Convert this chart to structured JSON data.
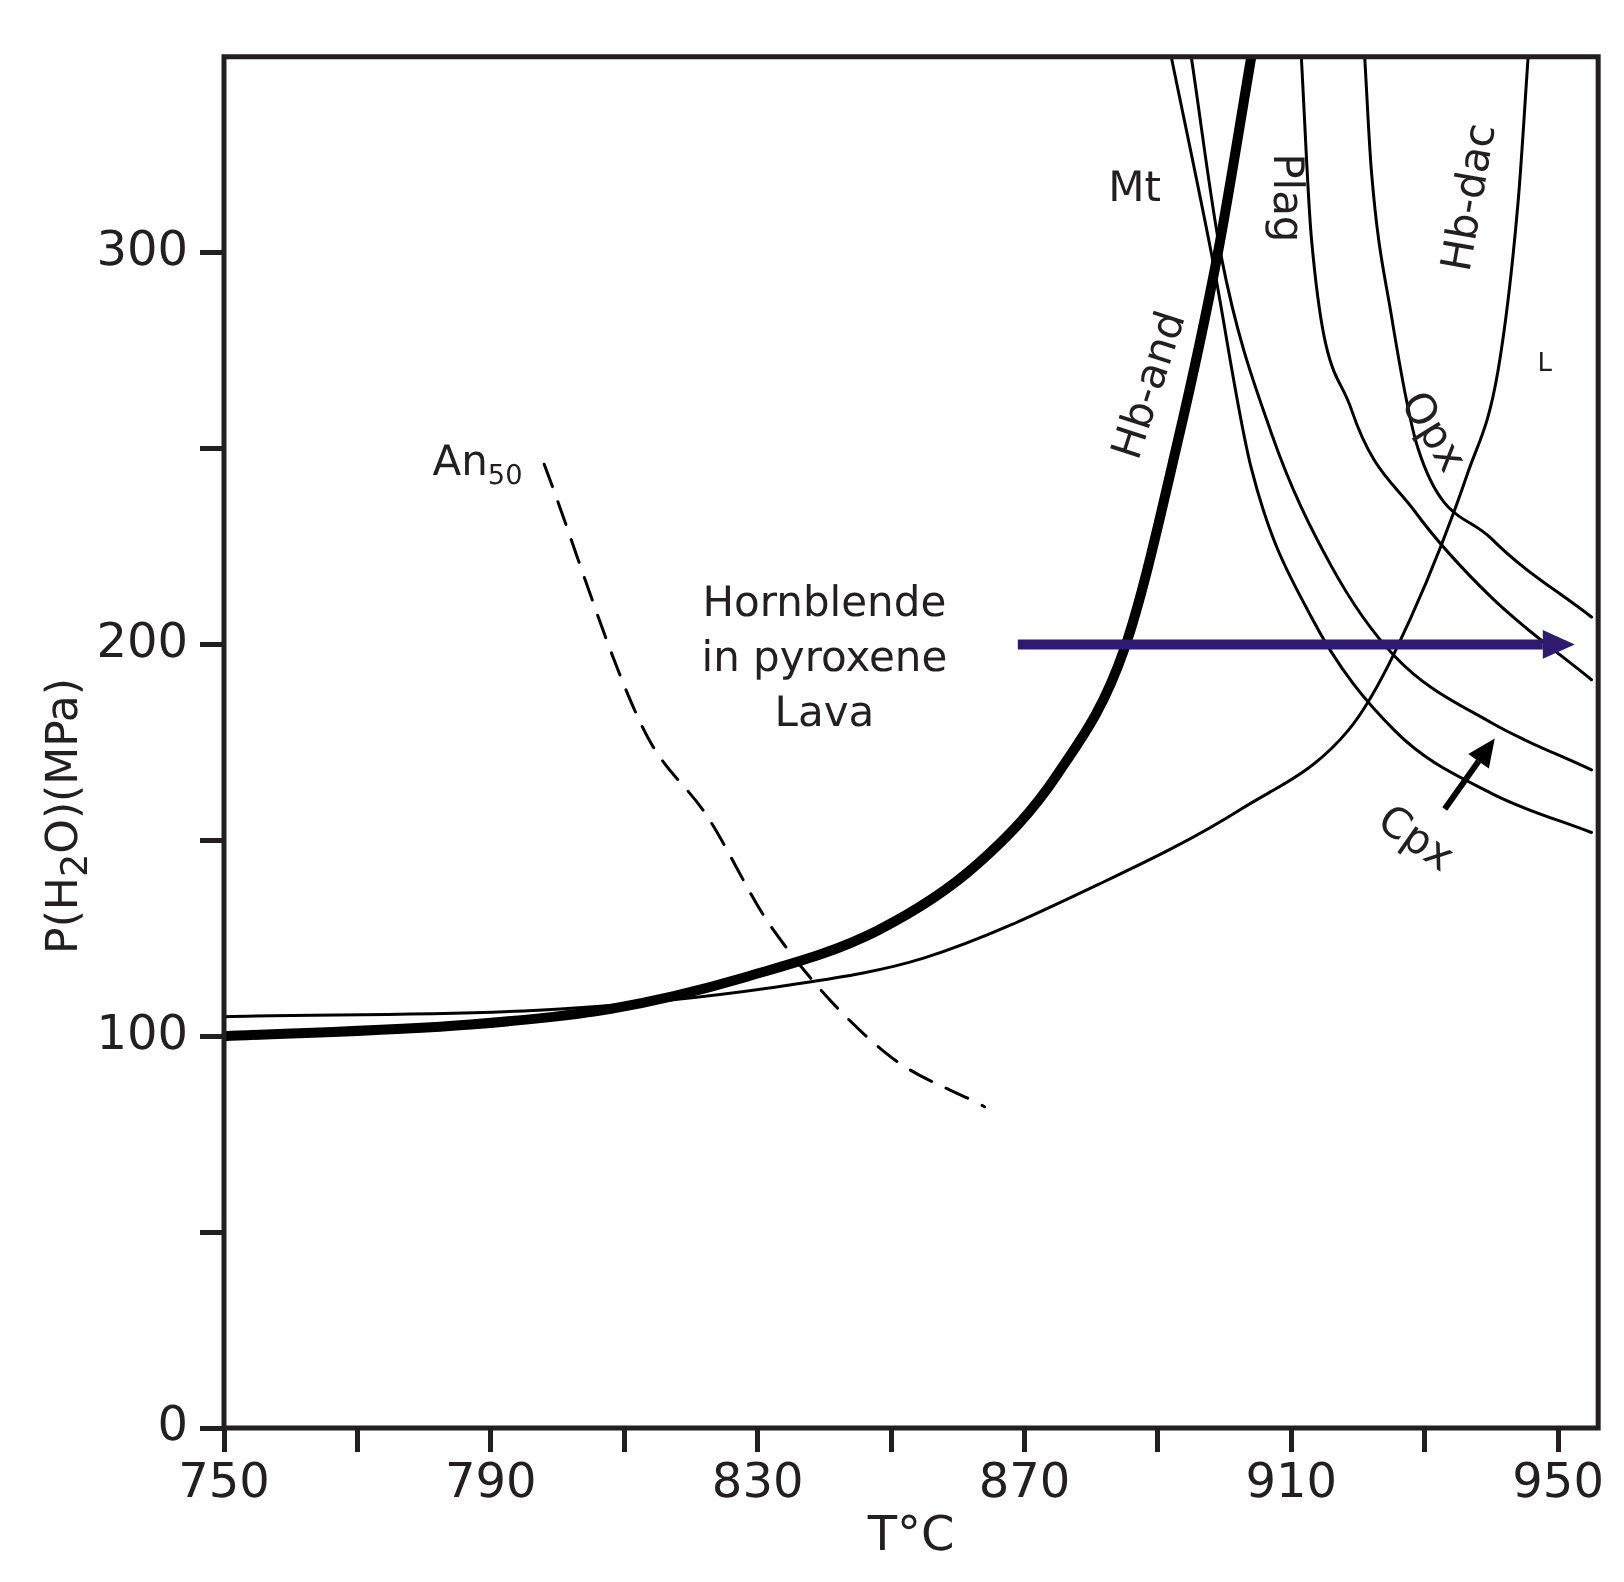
{
  "chart_data": {
    "type": "line",
    "xlabel": "T°C",
    "ylabel": "P(H$_{2}$O)(MPa)",
    "xlim": [
      750,
      956
    ],
    "ylim": [
      0,
      350
    ],
    "xticks": [
      750,
      {
        "value": 770,
        "label": null
      },
      790,
      {
        "value": 810,
        "label": null
      },
      830,
      {
        "value": 850,
        "label": null
      },
      870,
      {
        "value": 890,
        "label": null
      },
      910,
      {
        "value": 930,
        "label": null
      },
      950
    ],
    "yticks": [
      0,
      {
        "value": 50,
        "label": null
      },
      100,
      {
        "value": 150,
        "label": null
      },
      200,
      {
        "value": 250,
        "label": null
      },
      300
    ],
    "marker": "none",
    "series": [
      {
        "color": "#000000",
        "x": [
          750,
          787,
          808,
          828,
          848,
          863,
          875,
          885,
          893,
          899,
          904
        ],
        "values": [
          100,
          103,
          107,
          115,
          127,
          144,
          167,
          199,
          252,
          300,
          350
        ]
      },
      {
        "color": "#000000",
        "x": [
          750,
          801,
          834.5,
          855,
          882,
          902.5,
          918.5,
          925.5,
          936.5,
          941,
          944,
          945.5
        ],
        "values": [
          105,
          107,
          113,
          120,
          139.5,
          158,
          178,
          198,
          244,
          270,
          313,
          350
        ]
      },
      {
        "color": "#000000",
        "x": [
          892,
          898,
          904,
          913,
          925.5,
          940,
          955
        ],
        "values": [
          350,
          300,
          245,
          207,
          178,
          162,
          152
        ]
      },
      {
        "color": "#000000",
        "x": [
          895,
          899.5,
          907,
          916,
          925.5,
          940,
          955
        ],
        "values": [
          350,
          299,
          254,
          220,
          197,
          180,
          168
        ]
      },
      {
        "color": "#000000",
        "x": [
          911.5,
          913,
          919,
          928.5,
          940,
          955
        ],
        "values": [
          350,
          304,
          260,
          234,
          212,
          191
        ]
      },
      {
        "color": "#000000",
        "x": [
          921,
          922,
          925,
          929,
          940,
          955
        ],
        "values": [
          350,
          321,
          284,
          250,
          227,
          207
        ]
      },
      {
        "color": "#000000",
        "line_style": "dashed",
        "x": [
          798,
          813,
          822.5,
          832,
          849,
          864
        ],
        "values": [
          246,
          178,
          156,
          128,
          96,
          82
        ]
      }
    ],
    "annotations": [
      "Mt",
      "Hb-and",
      "Plag",
      "Hb-dac",
      "Opx",
      "L",
      "An$_{50}$",
      "Hornblende in pyroxene Lava",
      "Cpx"
    ]
  }
}
